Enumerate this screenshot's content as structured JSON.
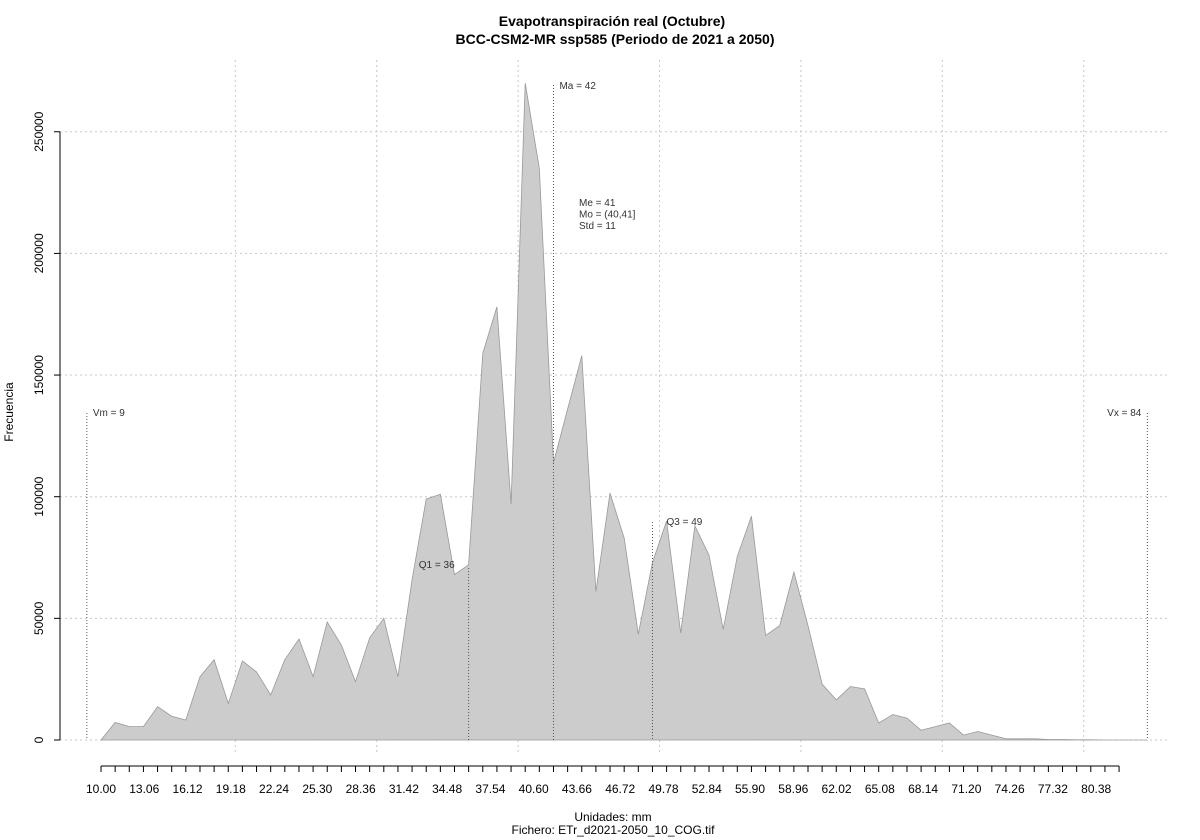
{
  "chart_data": {
    "type": "area",
    "title": "Evapotranspiración real (Octubre)",
    "subtitle": "BCC-CSM2-MR ssp585 (Periodo de 2021 a 2050)",
    "xlabel": "Unidades: mm",
    "ylabel": "Frecuencia",
    "caption": "Fichero: ETr_d2021-2050_10_COG.tif",
    "xlim": [
      10,
      84
    ],
    "ylim": [
      0,
      275000
    ],
    "x_ticks": [
      10,
      11,
      12,
      13,
      14,
      15,
      16,
      17,
      18,
      19,
      20,
      21,
      22,
      23,
      24,
      25,
      26,
      27,
      28,
      29,
      30,
      31,
      32,
      33,
      34,
      35,
      36,
      37,
      38,
      39,
      40,
      41,
      42,
      43,
      44,
      45,
      46,
      47,
      48,
      49,
      50,
      51,
      52,
      53,
      54,
      55,
      56,
      57,
      58,
      59,
      60,
      61,
      62,
      63,
      64,
      65,
      66,
      67,
      68,
      69,
      70,
      71,
      72,
      73,
      74,
      75,
      76,
      77,
      78,
      79,
      80,
      81,
      82
    ],
    "x_tick_labels": [
      "10.00",
      "13.06",
      "16.12",
      "19.18",
      "22.24",
      "25.30",
      "28.36",
      "31.42",
      "34.48",
      "37.54",
      "40.60",
      "43.66",
      "46.72",
      "49.78",
      "52.84",
      "55.90",
      "58.96",
      "62.02",
      "65.08",
      "68.14",
      "71.20",
      "74.26",
      "77.32",
      "80.38"
    ],
    "x_tick_label_values": [
      10.0,
      13.06,
      16.12,
      19.18,
      22.24,
      25.3,
      28.36,
      31.42,
      34.48,
      37.54,
      40.6,
      43.66,
      46.72,
      49.78,
      52.84,
      55.9,
      58.96,
      62.02,
      65.08,
      68.14,
      71.2,
      74.26,
      77.32,
      80.38
    ],
    "y_ticks": [
      0,
      50000,
      100000,
      150000,
      200000,
      250000
    ],
    "y_tick_labels": [
      "0",
      "50000",
      "100000",
      "150000",
      "200000",
      "250000"
    ],
    "x_grid": [
      19.5,
      29.5,
      39.5,
      49.5,
      59.5,
      69.5,
      79.5
    ],
    "grid": true,
    "series": [
      {
        "x": [
          10,
          11,
          12,
          13,
          14,
          15,
          16,
          17,
          18,
          19,
          20,
          21,
          22,
          23,
          24,
          25,
          26,
          27,
          28,
          29,
          30,
          31,
          32,
          33,
          34,
          35,
          36,
          37,
          38,
          39,
          40,
          41,
          42,
          43,
          44,
          45,
          46,
          47,
          48,
          49,
          50,
          51,
          52,
          53,
          54,
          55,
          56,
          57,
          58,
          59,
          60,
          61,
          62,
          63,
          64,
          65,
          66,
          67,
          68,
          69,
          70,
          71,
          72,
          73,
          74,
          75,
          76,
          77,
          78,
          79,
          80,
          81,
          82,
          83,
          84
        ],
        "values": [
          0,
          7200,
          5500,
          5500,
          13700,
          9800,
          8200,
          26000,
          33000,
          15000,
          32500,
          28000,
          18500,
          33000,
          41500,
          26000,
          48500,
          39000,
          24000,
          42000,
          50000,
          26000,
          66000,
          99000,
          101000,
          68000,
          72000,
          159000,
          178000,
          97000,
          270000,
          235000,
          114000,
          136000,
          158000,
          61000,
          101500,
          83000,
          43500,
          73000,
          90000,
          44000,
          88000,
          76000,
          45500,
          75500,
          92000,
          43000,
          47000,
          69000,
          47000,
          23000,
          16500,
          22000,
          21000,
          7000,
          10500,
          9000,
          4000,
          5500,
          7000,
          2000,
          3500,
          2000,
          500,
          500,
          500,
          200,
          200,
          100,
          100,
          0,
          0,
          0,
          0
        ],
        "color": "#cccccc",
        "outline": "#999999"
      }
    ],
    "annotations": [
      {
        "label": "Vm = 9",
        "x": 9
      },
      {
        "label": "Q1 = 36",
        "x": 36
      },
      {
        "label": "Ma = 42",
        "x": 42
      },
      {
        "label": "Q3 = 49",
        "x": 49
      },
      {
        "label": "Vx = 84",
        "x": 84
      }
    ],
    "stats_box": [
      "Me = 41",
      "Mo = (40,41]",
      "Std = 11"
    ]
  }
}
